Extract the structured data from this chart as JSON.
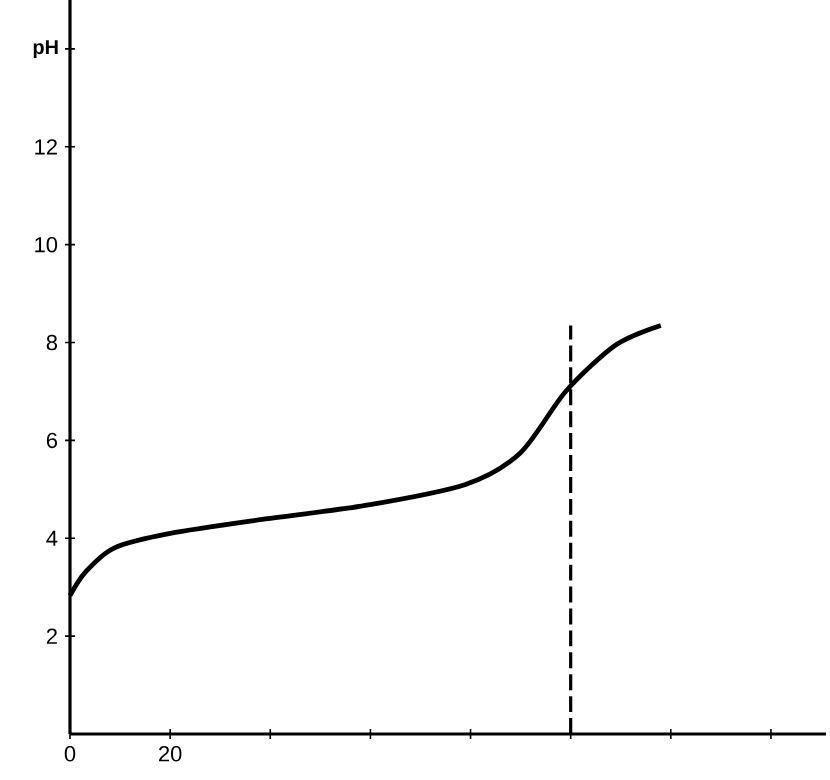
{
  "chart_data": {
    "type": "line",
    "ylabel": "pH",
    "x": [
      0,
      3,
      8.8,
      20,
      39.5,
      59,
      79,
      90,
      99,
      109,
      118
    ],
    "series": [
      {
        "color": "#000000",
        "values": [
          2.83,
          3.3,
          3.8,
          4.1,
          4.4,
          4.67,
          5.1,
          5.75,
          7.0,
          7.95,
          8.35
        ]
      }
    ],
    "xlim": [
      0,
      151
    ],
    "ylim": [
      0,
      15
    ],
    "xticks": [
      0,
      20,
      {
        "value": 40,
        "label": null
      },
      {
        "value": 60,
        "label": null
      },
      {
        "value": 80,
        "label": null
      },
      {
        "value": 100,
        "label": null
      },
      {
        "value": 120,
        "label": null
      },
      {
        "value": 140,
        "label": null
      }
    ],
    "yticks": [
      2,
      4,
      6,
      8,
      10,
      12,
      {
        "value": 14,
        "label": null
      }
    ],
    "ref_lines": [
      {
        "axis": "x",
        "value": 100,
        "line_style": "dashed"
      }
    ],
    "marker": "none",
    "line_style": "solid",
    "grid": false
  }
}
